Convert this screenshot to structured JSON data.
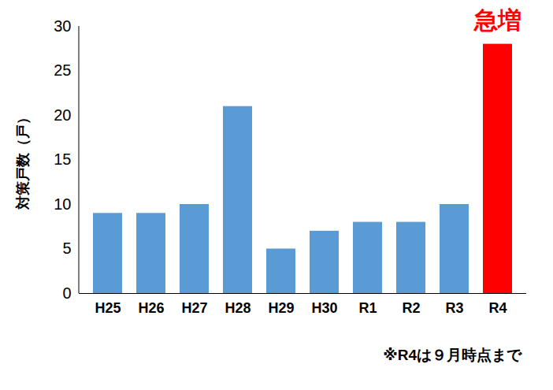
{
  "chart_data": {
    "type": "bar",
    "ylabel": "対策戸数（戸）",
    "categories": [
      "H25",
      "H26",
      "H27",
      "H28",
      "H29",
      "H30",
      "R1",
      "R2",
      "R3",
      "R4"
    ],
    "values": [
      9,
      9,
      10,
      21,
      5,
      7,
      8,
      8,
      10,
      28
    ],
    "colors": [
      "#5b9bd5",
      "#5b9bd5",
      "#5b9bd5",
      "#5b9bd5",
      "#5b9bd5",
      "#5b9bd5",
      "#5b9bd5",
      "#5b9bd5",
      "#5b9bd5",
      "#ff0000"
    ],
    "ylim": [
      0,
      30
    ],
    "yticks": [
      0,
      5,
      10,
      15,
      20,
      25,
      30
    ],
    "grid": false,
    "annotations": [
      {
        "text": "急増",
        "category": "R4",
        "color": "#ff0000"
      }
    ],
    "caption": "※R4は９月時点まで"
  }
}
